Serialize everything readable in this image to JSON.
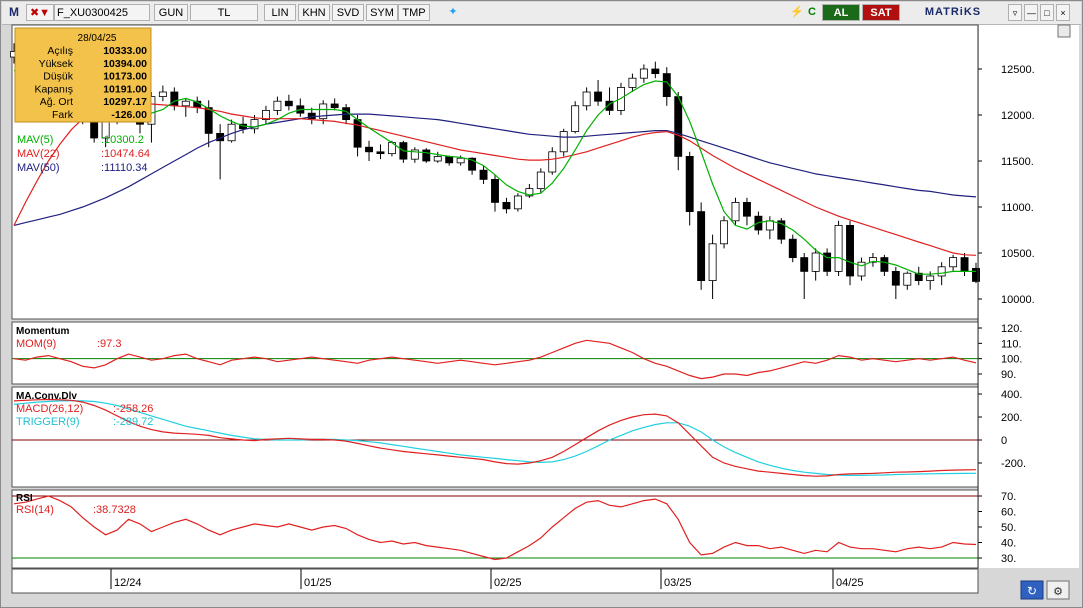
{
  "toolbar": {
    "app_logo": "M",
    "symbol": "F_XU0300425",
    "period": "GUN",
    "currency": "TL",
    "scale": "LIN",
    "btn_khn": "KHN",
    "btn_svd": "SVD",
    "btn_sym": "SYM",
    "btn_tmp": "TMP",
    "buy": "AL",
    "sell": "SAT",
    "brand": "MATRiKS"
  },
  "info_box": {
    "date": "28/04/25",
    "rows": [
      {
        "label": "Açılış",
        "value": "10333.00"
      },
      {
        "label": "Yüksek",
        "value": "10394.00"
      },
      {
        "label": "Düşük",
        "value": "10173.00"
      },
      {
        "label": "Kapanış",
        "value": "10191.00"
      },
      {
        "label": "Ağ. Ort",
        "value": "10297.17"
      },
      {
        "label": "Fark",
        "value": "-126.00"
      }
    ]
  },
  "colors": {
    "up_candle": "#ffffff",
    "down_candle": "#000000",
    "mav5": "#00b000",
    "mav22": "#e02020",
    "mav50": "#202080",
    "mom": "#e02020",
    "macd": "#e02020",
    "trigger": "#20d0e0",
    "rsi": "#e02020",
    "ref_line_green": "#008000",
    "ref_line_red": "#800000",
    "info_bg": "#f3c24a"
  },
  "legend": {
    "mav5": {
      "label": "MAV(5)",
      "value": ":10300.2"
    },
    "mav22": {
      "label": "MAV(22)",
      "value": ":10474.64"
    },
    "mav50": {
      "label": "MAV(50)",
      "value": ":11110.34"
    },
    "momentum_title": "Momentum",
    "mom": {
      "label": "MOM(9)",
      "value": ":97.3"
    },
    "macd_title": "MA.Conv.Dlv",
    "macd": {
      "label": "MACD(26,12)",
      "value": ":-258.26"
    },
    "trigger": {
      "label": "TRIGGER(9)",
      "value": ":-289.72"
    },
    "rsi_title": "RSI",
    "rsi": {
      "label": "RSI(14)",
      "value": ":38.7328"
    }
  },
  "chart_data": {
    "type": "candlestick",
    "x_labels": [
      "12/24",
      "01/25",
      "02/25",
      "03/25",
      "04/25"
    ],
    "price_axis": {
      "ticks": [
        12500,
        12000,
        11500,
        11000,
        10500,
        10000
      ],
      "range": [
        9800,
        12950
      ]
    },
    "candles": [
      [
        12630,
        12780,
        12560,
        12690
      ],
      [
        12690,
        12720,
        12480,
        12520
      ],
      [
        12520,
        12650,
        12450,
        12600
      ],
      [
        12600,
        12620,
        12380,
        12420
      ],
      [
        12420,
        12480,
        12250,
        12330
      ],
      [
        12330,
        12380,
        12000,
        12100
      ],
      [
        12100,
        12150,
        11900,
        11950
      ],
      [
        11950,
        12080,
        11700,
        11750
      ],
      [
        11750,
        12030,
        11650,
        11980
      ],
      [
        11980,
        12250,
        11900,
        12200
      ],
      [
        12200,
        12280,
        11950,
        12050
      ],
      [
        12050,
        12200,
        11800,
        11900
      ],
      [
        11900,
        12250,
        11700,
        12200
      ],
      [
        12200,
        12320,
        12150,
        12250
      ],
      [
        12250,
        12300,
        12050,
        12100
      ],
      [
        12100,
        12180,
        11980,
        12150
      ],
      [
        12150,
        12200,
        12020,
        12080
      ],
      [
        12080,
        12160,
        11650,
        11800
      ],
      [
        11800,
        11900,
        11300,
        11720
      ],
      [
        11720,
        11950,
        11700,
        11900
      ],
      [
        11900,
        11980,
        11800,
        11850
      ],
      [
        11850,
        12000,
        11800,
        11950
      ],
      [
        11950,
        12100,
        11900,
        12050
      ],
      [
        12050,
        12200,
        12000,
        12150
      ],
      [
        12150,
        12220,
        12050,
        12100
      ],
      [
        12100,
        12180,
        11980,
        12020
      ],
      [
        12020,
        12080,
        11900,
        11960
      ],
      [
        11960,
        12160,
        11900,
        12120
      ],
      [
        12120,
        12180,
        12050,
        12080
      ],
      [
        12080,
        12120,
        11900,
        11950
      ],
      [
        11950,
        12000,
        11550,
        11650
      ],
      [
        11650,
        11720,
        11500,
        11600
      ],
      [
        11600,
        11680,
        11520,
        11580
      ],
      [
        11580,
        11720,
        11550,
        11700
      ],
      [
        11700,
        11720,
        11480,
        11520
      ],
      [
        11520,
        11650,
        11480,
        11620
      ],
      [
        11620,
        11640,
        11480,
        11500
      ],
      [
        11500,
        11600,
        11480,
        11550
      ],
      [
        11550,
        11560,
        11450,
        11480
      ],
      [
        11480,
        11560,
        11450,
        11530
      ],
      [
        11530,
        11540,
        11350,
        11400
      ],
      [
        11400,
        11450,
        11250,
        11300
      ],
      [
        11300,
        11350,
        10950,
        11050
      ],
      [
        11050,
        11100,
        10930,
        10980
      ],
      [
        10980,
        11150,
        10950,
        11120
      ],
      [
        11120,
        11250,
        11100,
        11200
      ],
      [
        11200,
        11420,
        11150,
        11380
      ],
      [
        11380,
        11650,
        11350,
        11600
      ],
      [
        11600,
        11850,
        11550,
        11820
      ],
      [
        11820,
        12150,
        11800,
        12100
      ],
      [
        12100,
        12300,
        12050,
        12250
      ],
      [
        12250,
        12380,
        12100,
        12150
      ],
      [
        12150,
        12300,
        12000,
        12050
      ],
      [
        12050,
        12350,
        12000,
        12300
      ],
      [
        12300,
        12450,
        12250,
        12400
      ],
      [
        12400,
        12550,
        12350,
        12500
      ],
      [
        12500,
        12580,
        12400,
        12450
      ],
      [
        12450,
        12520,
        12100,
        12200
      ],
      [
        12200,
        12250,
        11400,
        11550
      ],
      [
        11550,
        11600,
        10800,
        10950
      ],
      [
        10950,
        11050,
        10100,
        10200
      ],
      [
        10200,
        10700,
        10000,
        10600
      ],
      [
        10600,
        10900,
        10550,
        10850
      ],
      [
        10850,
        11100,
        10800,
        11050
      ],
      [
        11050,
        11100,
        10800,
        10900
      ],
      [
        10900,
        10950,
        10700,
        10750
      ],
      [
        10750,
        10900,
        10650,
        10850
      ],
      [
        10850,
        10880,
        10600,
        10650
      ],
      [
        10650,
        10700,
        10400,
        10450
      ],
      [
        10450,
        10500,
        10000,
        10300
      ],
      [
        10300,
        10550,
        10200,
        10500
      ],
      [
        10500,
        10550,
        10250,
        10300
      ],
      [
        10300,
        10850,
        10250,
        10800
      ],
      [
        10800,
        10850,
        10150,
        10250
      ],
      [
        10250,
        10450,
        10200,
        10400
      ],
      [
        10400,
        10500,
        10350,
        10450
      ],
      [
        10450,
        10480,
        10250,
        10300
      ],
      [
        10300,
        10350,
        10000,
        10150
      ],
      [
        10150,
        10300,
        10100,
        10280
      ],
      [
        10280,
        10350,
        10150,
        10200
      ],
      [
        10200,
        10300,
        10100,
        10250
      ],
      [
        10250,
        10400,
        10150,
        10350
      ],
      [
        10350,
        10480,
        10300,
        10450
      ],
      [
        10450,
        10500,
        10250,
        10300
      ],
      [
        10333,
        10394,
        10173,
        10191
      ]
    ],
    "mav5": [
      12480,
      12520,
      12540,
      12560,
      12480,
      12400,
      12250,
      12100,
      12000,
      11950,
      12000,
      12000,
      12020,
      12060,
      12150,
      12180,
      12140,
      12070,
      11990,
      11930,
      11880,
      11870,
      11900,
      11950,
      12020,
      12060,
      12060,
      12060,
      12060,
      12040,
      11950,
      11860,
      11780,
      11700,
      11610,
      11600,
      11590,
      11570,
      11550,
      11540,
      11510,
      11450,
      11350,
      11240,
      11170,
      11130,
      11150,
      11260,
      11420,
      11620,
      11830,
      12000,
      12120,
      12180,
      12260,
      12330,
      12370,
      12360,
      12200,
      11930,
      11600,
      11250,
      10950,
      10800,
      10760,
      10830,
      10850,
      10820,
      10750,
      10650,
      10530,
      10450,
      10450,
      10400,
      10360,
      10410,
      10400,
      10370,
      10320,
      10270,
      10270,
      10280,
      10300,
      10300,
      10300
    ],
    "mav22": [
      10800,
      11050,
      11280,
      11500,
      11680,
      11840,
      11960,
      12050,
      12100,
      12120,
      12130,
      12130,
      12120,
      12110,
      12100,
      12090,
      12080,
      12060,
      12040,
      12010,
      11990,
      11970,
      11960,
      11960,
      11960,
      11960,
      11950,
      11940,
      11930,
      11910,
      11890,
      11860,
      11830,
      11800,
      11770,
      11740,
      11710,
      11680,
      11650,
      11620,
      11600,
      11580,
      11560,
      11540,
      11520,
      11510,
      11510,
      11520,
      11540,
      11570,
      11600,
      11640,
      11680,
      11720,
      11760,
      11790,
      11810,
      11820,
      11780,
      11720,
      11640,
      11560,
      11490,
      11420,
      11360,
      11300,
      11240,
      11180,
      11120,
      11060,
      11000,
      10950,
      10900,
      10860,
      10820,
      10780,
      10740,
      10700,
      10660,
      10620,
      10580,
      10540,
      10500,
      10480,
      10475
    ],
    "mav50": [
      10800,
      10830,
      10860,
      10890,
      10920,
      10960,
      11000,
      11050,
      11100,
      11160,
      11220,
      11290,
      11360,
      11430,
      11500,
      11570,
      11640,
      11700,
      11750,
      11800,
      11840,
      11870,
      11900,
      11920,
      11940,
      11960,
      11980,
      11990,
      12000,
      12010,
      12010,
      12010,
      12000,
      11990,
      11980,
      11970,
      11960,
      11950,
      11930,
      11910,
      11890,
      11870,
      11850,
      11830,
      11810,
      11790,
      11780,
      11770,
      11760,
      11760,
      11770,
      11780,
      11790,
      11800,
      11810,
      11820,
      11830,
      11830,
      11800,
      11760,
      11720,
      11680,
      11640,
      11600,
      11560,
      11520,
      11480,
      11450,
      11420,
      11390,
      11360,
      11340,
      11320,
      11300,
      11280,
      11260,
      11240,
      11220,
      11200,
      11180,
      11170,
      11150,
      11130,
      11120,
      11110
    ],
    "momentum_axis": {
      "ticks": [
        120,
        110,
        100,
        90
      ],
      "ref": 100
    },
    "mom": [
      100,
      99,
      101,
      102,
      100,
      98,
      95,
      94,
      96,
      100,
      103,
      101,
      99,
      100,
      102,
      103,
      100,
      98,
      96,
      99,
      100,
      101,
      100,
      98,
      99,
      100,
      101,
      100,
      99,
      98,
      97,
      99,
      100,
      101,
      100,
      99,
      98,
      97,
      98,
      99,
      98,
      97,
      96,
      97,
      98,
      99,
      101,
      104,
      107,
      110,
      112,
      111,
      110,
      107,
      104,
      100,
      97,
      95,
      92,
      89,
      87,
      88,
      90,
      90,
      89,
      91,
      92,
      94,
      96,
      98,
      97,
      99,
      102,
      101,
      99,
      100,
      99,
      98,
      99,
      100,
      99,
      100,
      101,
      99,
      97.3
    ],
    "macd_axis": {
      "ticks": [
        400,
        200,
        0,
        -200
      ],
      "ref": 0
    },
    "macd": [
      340,
      345,
      350,
      352,
      350,
      345,
      330,
      300,
      260,
      210,
      160,
      120,
      90,
      70,
      60,
      55,
      50,
      40,
      20,
      10,
      0,
      -5,
      5,
      10,
      15,
      10,
      5,
      5,
      0,
      -10,
      -30,
      -50,
      -70,
      -85,
      -100,
      -110,
      -120,
      -130,
      -140,
      -150,
      -160,
      -170,
      -190,
      -205,
      -210,
      -200,
      -180,
      -150,
      -100,
      -40,
      20,
      80,
      130,
      170,
      200,
      220,
      225,
      210,
      150,
      50,
      -50,
      -150,
      -200,
      -230,
      -250,
      -270,
      -280,
      -290,
      -300,
      -310,
      -315,
      -312,
      -300,
      -295,
      -292,
      -290,
      -285,
      -280,
      -278,
      -275,
      -270,
      -265,
      -262,
      -260,
      -258.26
    ],
    "trigger": [
      310,
      320,
      330,
      335,
      340,
      342,
      340,
      335,
      320,
      300,
      270,
      240,
      210,
      180,
      150,
      120,
      100,
      80,
      60,
      40,
      25,
      10,
      5,
      0,
      0,
      0,
      5,
      5,
      5,
      0,
      -5,
      -15,
      -25,
      -40,
      -55,
      -70,
      -85,
      -100,
      -115,
      -130,
      -140,
      -150,
      -160,
      -170,
      -180,
      -190,
      -195,
      -190,
      -170,
      -140,
      -100,
      -50,
      0,
      40,
      80,
      110,
      135,
      150,
      150,
      120,
      70,
      0,
      -60,
      -110,
      -150,
      -190,
      -220,
      -245,
      -265,
      -280,
      -290,
      -300,
      -305,
      -308,
      -308,
      -306,
      -304,
      -300,
      -298,
      -296,
      -294,
      -292,
      -291,
      -290,
      -289.72
    ],
    "rsi_axis": {
      "ticks": [
        70,
        60,
        50,
        40,
        30
      ],
      "upper": 70,
      "lower": 30
    },
    "rsi": [
      65,
      66,
      68,
      70,
      67,
      63,
      56,
      50,
      45,
      48,
      55,
      52,
      47,
      50,
      53,
      55,
      52,
      48,
      45,
      48,
      50,
      52,
      51,
      50,
      52,
      50,
      48,
      50,
      51,
      49,
      45,
      42,
      40,
      41,
      39,
      40,
      38,
      37,
      36,
      35,
      33,
      31,
      29,
      30,
      34,
      38,
      43,
      50,
      56,
      62,
      66,
      67,
      64,
      63,
      65,
      67,
      68,
      65,
      55,
      40,
      32,
      33,
      37,
      40,
      38,
      38,
      36,
      37,
      35,
      33,
      35,
      34,
      40,
      37,
      36,
      36,
      35,
      34,
      36,
      37,
      36,
      37,
      40,
      39,
      38.7328
    ]
  }
}
